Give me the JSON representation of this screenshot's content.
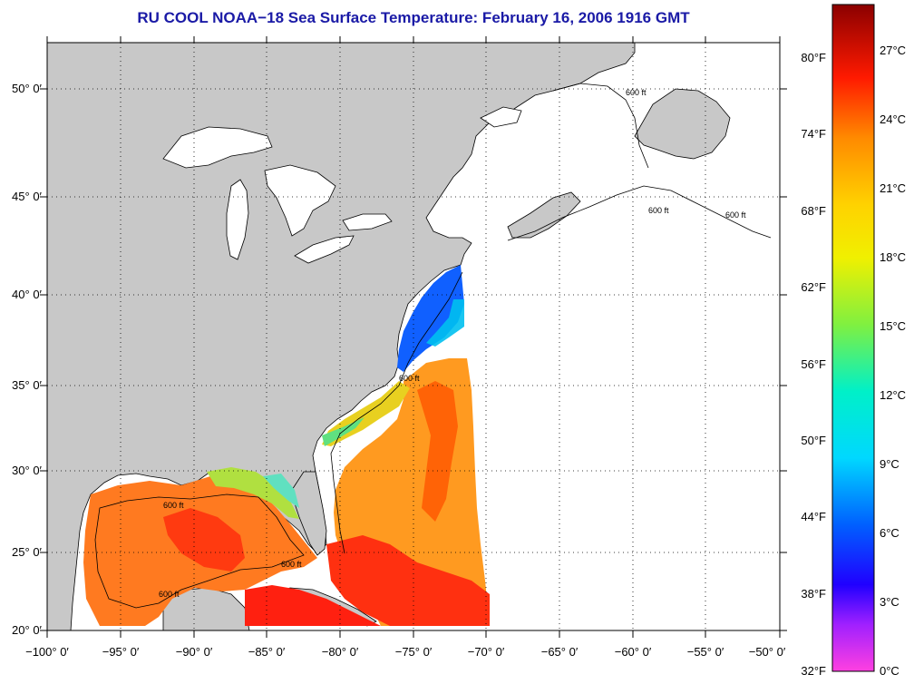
{
  "title": "RU COOL  NOAA−18  Sea Surface Temperature:  February 16, 2006 1916 GMT",
  "lat_labels": [
    "50° 0′",
    "45° 0′",
    "40° 0′",
    "35° 0′",
    "30° 0′",
    "25° 0′",
    "20° 0′"
  ],
  "lon_labels": [
    "−100° 0′",
    "−95° 0′",
    "−90° 0′",
    "−85° 0′",
    "−80° 0′",
    "−75° 0′",
    "−70° 0′",
    "−65° 0′",
    "−60° 0′",
    "−55° 0′",
    "−50° 0′"
  ],
  "colorbar": {
    "fahrenheit": [
      "80°F",
      "74°F",
      "68°F",
      "62°F",
      "56°F",
      "50°F",
      "44°F",
      "38°F",
      "32°F"
    ],
    "celsius": [
      "27°C",
      "24°C",
      "21°C",
      "18°C",
      "15°C",
      "12°C",
      "9°C",
      "6°C",
      "3°C",
      "0°C"
    ],
    "colors": [
      "#8b0000",
      "#ff1a00",
      "#ff8a00",
      "#ffd200",
      "#f0f000",
      "#80f040",
      "#00f0c8",
      "#00d8ff",
      "#0060ff",
      "#2000ff",
      "#a000ff",
      "#ff40e0"
    ]
  },
  "contour_label": "600 ft",
  "colors": {
    "land": "#c8c8c8",
    "ocean_nodata": "#ffffff",
    "title": "#1a1aa6"
  }
}
